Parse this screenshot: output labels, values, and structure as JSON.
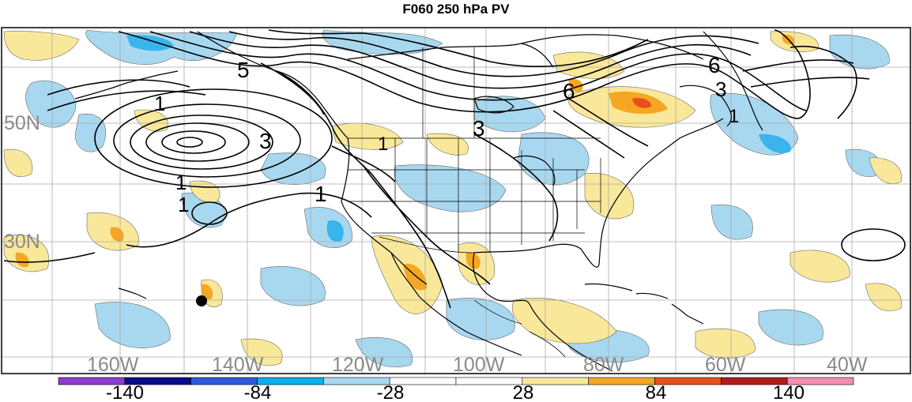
{
  "title": "F060 250 hPa PV",
  "map": {
    "lat_labels": [
      "50N",
      "30N"
    ],
    "lon_labels": [
      "160W",
      "140W",
      "120W",
      "100W",
      "80W",
      "60W",
      "40W"
    ],
    "contour_labels": [
      "5",
      "1",
      "3",
      "1",
      "1",
      "1",
      "3",
      "1",
      "6",
      "6",
      "3",
      "1"
    ],
    "colors": {
      "light_blue": "#a8d8f0",
      "mid_blue": "#3ab4ec",
      "light_yellow": "#fae89a",
      "orange": "#f5a623",
      "red_orange": "#e8501c",
      "coast": "#000000"
    }
  },
  "colorbar": {
    "labels": [
      "-140",
      "-84",
      "-28",
      "28",
      "84",
      "140"
    ],
    "colors": [
      "#8e3ccf",
      "#0a0a8c",
      "#2c5cdc",
      "#0ab0ee",
      "#a8d8f0",
      "#ffffff",
      "#ffffff",
      "#fae89a",
      "#f5a623",
      "#e8501c",
      "#b01c1c",
      "#f58fb0"
    ]
  }
}
